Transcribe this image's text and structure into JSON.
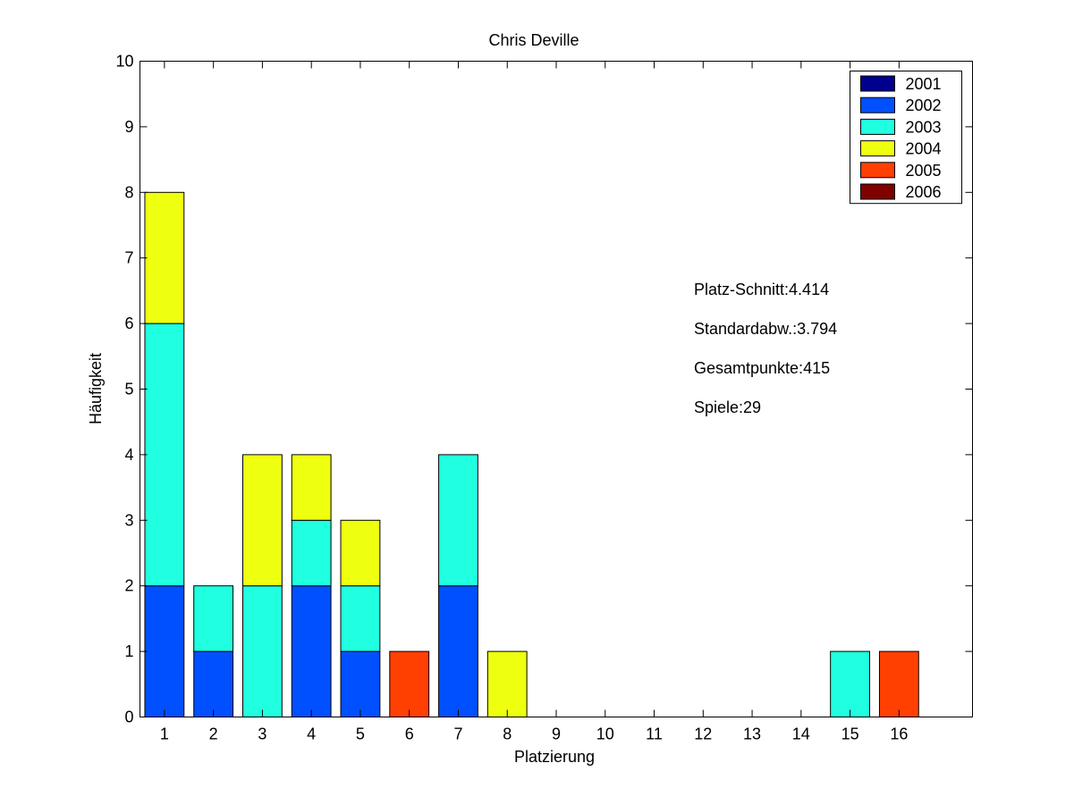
{
  "chart_data": {
    "type": "bar",
    "stacked": true,
    "title": "Chris Deville",
    "xlabel": "Platzierung",
    "ylabel": "Häufigkeit",
    "categories": [
      "1",
      "2",
      "3",
      "4",
      "5",
      "6",
      "7",
      "8",
      "9",
      "10",
      "11",
      "12",
      "13",
      "14",
      "15",
      "16"
    ],
    "xlim": [
      0.5,
      17.5
    ],
    "ylim": [
      0,
      10
    ],
    "yticks": [
      0,
      1,
      2,
      3,
      4,
      5,
      6,
      7,
      8,
      9,
      10
    ],
    "grid": false,
    "legend_position": "top-right",
    "series": [
      {
        "name": "2001",
        "color": "#00008F",
        "values": [
          0,
          0,
          0,
          0,
          0,
          0,
          0,
          0,
          0,
          0,
          0,
          0,
          0,
          0,
          0,
          0
        ]
      },
      {
        "name": "2002",
        "color": "#0050FF",
        "values": [
          2,
          1,
          0,
          2,
          1,
          0,
          2,
          0,
          0,
          0,
          0,
          0,
          0,
          0,
          0,
          0
        ]
      },
      {
        "name": "2003",
        "color": "#20FFDF",
        "values": [
          4,
          1,
          2,
          1,
          1,
          0,
          2,
          0,
          0,
          0,
          0,
          0,
          0,
          0,
          1,
          0
        ]
      },
      {
        "name": "2004",
        "color": "#EFFF10",
        "values": [
          2,
          0,
          2,
          1,
          1,
          0,
          0,
          1,
          0,
          0,
          0,
          0,
          0,
          0,
          0,
          0
        ]
      },
      {
        "name": "2005",
        "color": "#FF4000",
        "values": [
          0,
          0,
          0,
          0,
          0,
          1,
          0,
          0,
          0,
          0,
          0,
          0,
          0,
          0,
          0,
          1
        ]
      },
      {
        "name": "2006",
        "color": "#800000",
        "values": [
          0,
          0,
          0,
          0,
          0,
          0,
          0,
          0,
          0,
          0,
          0,
          0,
          0,
          0,
          0,
          0
        ]
      }
    ],
    "annotations": [
      "Platz-Schnitt:4.414",
      "Standardabw.:3.794",
      "Gesamtpunkte:415",
      "Spiele:29"
    ]
  }
}
